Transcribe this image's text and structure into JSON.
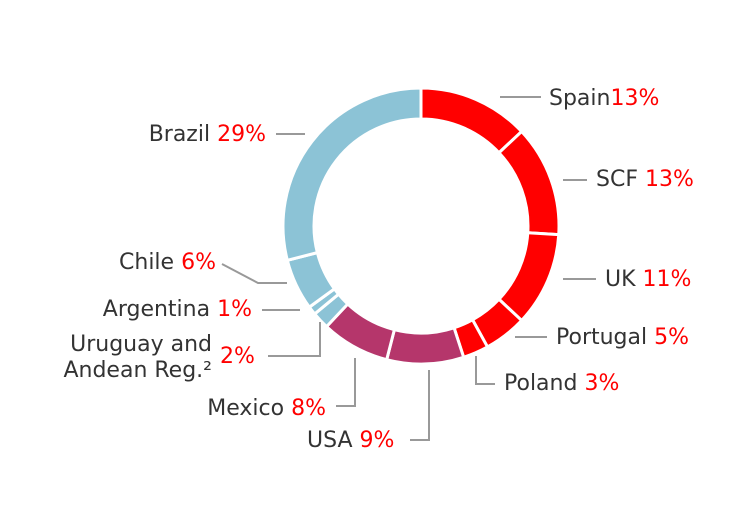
{
  "chart_data": {
    "type": "pie",
    "title": "",
    "colors": {
      "red": "#ff0000",
      "magenta": "#b5366b",
      "lightblue": "#8cc3d6",
      "leader": "#999999"
    },
    "slices": [
      {
        "label": "Spain",
        "value": 13,
        "pct_label": "13%",
        "color": "#ff0000"
      },
      {
        "label": "SCF",
        "value": 13,
        "pct_label": "13%",
        "color": "#ff0000"
      },
      {
        "label": "UK",
        "value": 11,
        "pct_label": "11%",
        "color": "#ff0000"
      },
      {
        "label": "Portugal",
        "value": 5,
        "pct_label": "5%",
        "color": "#ff0000"
      },
      {
        "label": "Poland",
        "value": 3,
        "pct_label": "3%",
        "color": "#ff0000"
      },
      {
        "label": "USA",
        "value": 9,
        "pct_label": "9%",
        "color": "#b5366b"
      },
      {
        "label": "Mexico",
        "value": 8,
        "pct_label": "8%",
        "color": "#b5366b"
      },
      {
        "label": "Uruguay and",
        "label2": "Andean Reg.²",
        "value": 2,
        "pct_label": "2%",
        "color": "#8cc3d6"
      },
      {
        "label": "Argentina",
        "value": 1,
        "pct_label": "1%",
        "color": "#8cc3d6"
      },
      {
        "label": "Chile",
        "value": 6,
        "pct_label": "6%",
        "color": "#8cc3d6"
      },
      {
        "label": "Brazil",
        "value": 29,
        "pct_label": "29%",
        "color": "#8cc3d6"
      }
    ]
  }
}
